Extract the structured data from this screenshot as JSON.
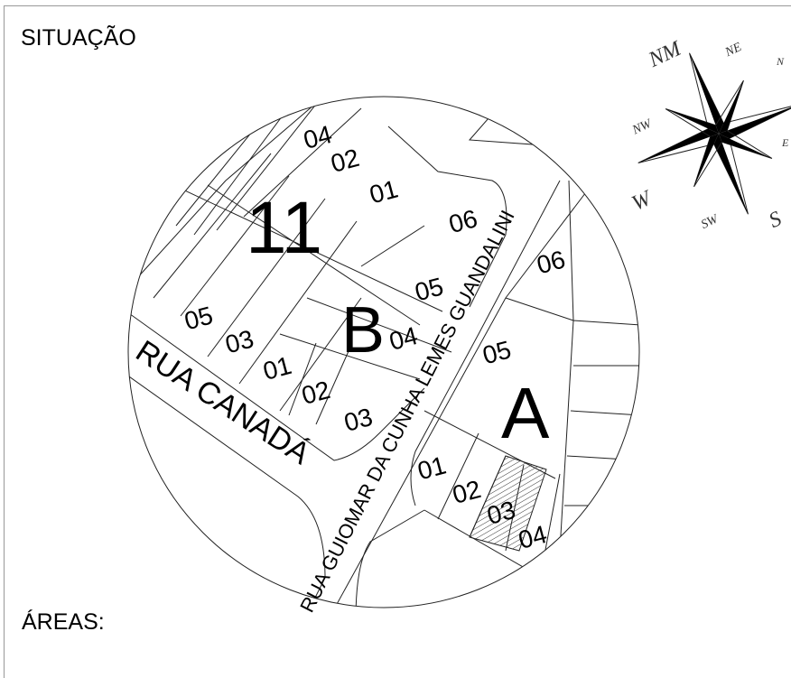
{
  "title": "SITUAÇÃO",
  "areas_label": "ÁREAS:",
  "streets": {
    "canada": "RUA CANADÁ",
    "guiomar": "RUA GUIOMAR DA CUNHA LEMES GUANDALINI"
  },
  "blocks": {
    "b11": "11",
    "b": "B",
    "a": "A"
  },
  "lots": {
    "b11_04": "04",
    "b11_02": "02",
    "b11_01": "01",
    "b11_06": "06",
    "b11_05": "05",
    "b11_03": "03",
    "bb_05": "05",
    "bb_04": "04",
    "bb_01": "01",
    "bb_02": "02",
    "bb_03": "03",
    "ba_06": "06",
    "ba_05": "05",
    "ba_01": "01",
    "ba_02": "02",
    "ba_03": "03",
    "ba_04": "04"
  },
  "compass": {
    "nm": "NM",
    "ne": "NE",
    "nw": "NW",
    "w": "W",
    "sw": "SW",
    "s": "S",
    "e": "E",
    "n": "N"
  },
  "highlighted_lot": "03",
  "colors": {
    "line": "#222222",
    "fill": "#000000"
  }
}
